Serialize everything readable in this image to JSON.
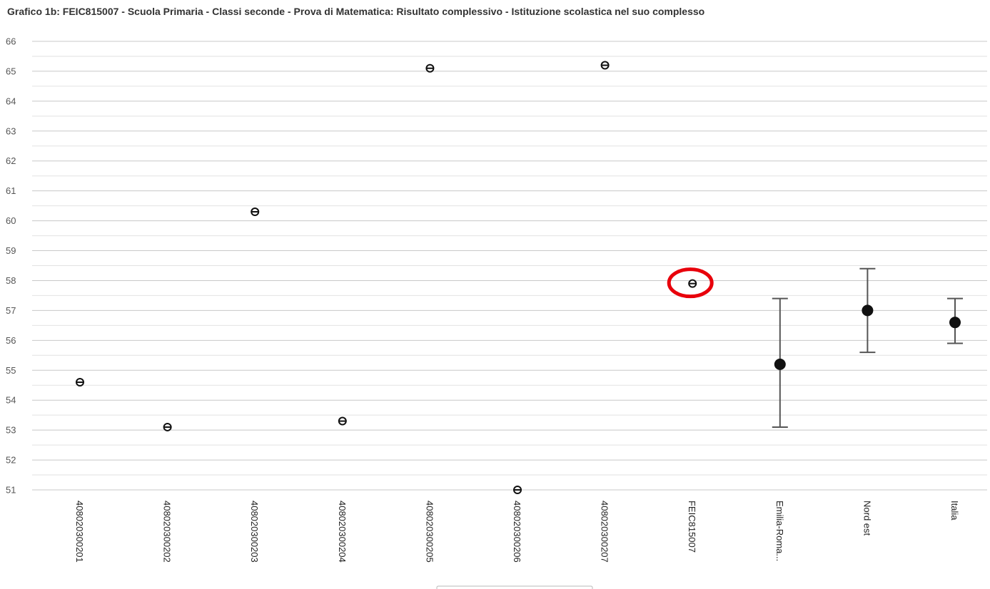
{
  "chart_data": {
    "type": "scatter",
    "title": "Grafico 1b: FEIC815007 - Scuola Primaria - Classi seconde - Prova di Matematica: Risultato complessivo - Istituzione scolastica nel suo complesso",
    "xlabel": "",
    "ylabel": "",
    "ylim": [
      51,
      66
    ],
    "yticks": [
      "51",
      "52",
      "53",
      "54",
      "55",
      "56",
      "57",
      "58",
      "59",
      "60",
      "61",
      "62",
      "63",
      "64",
      "65",
      "66"
    ],
    "grid": true,
    "categories": [
      "408020300201",
      "408020300202",
      "408020300203",
      "408020300204",
      "408020300205",
      "408020300206",
      "408020300207",
      "FEIC815007",
      "Emilia-Roma...",
      "Nord est",
      "Italia"
    ],
    "points": [
      {
        "category": "408020300201",
        "value": 54.6,
        "style": "circle-small"
      },
      {
        "category": "408020300202",
        "value": 53.1,
        "style": "circle-small"
      },
      {
        "category": "408020300203",
        "value": 60.3,
        "style": "circle-small"
      },
      {
        "category": "408020300204",
        "value": 53.3,
        "style": "circle-small"
      },
      {
        "category": "408020300205",
        "value": 65.1,
        "style": "circle-small"
      },
      {
        "category": "408020300206",
        "value": 51.0,
        "style": "circle-small"
      },
      {
        "category": "408020300207",
        "value": 65.2,
        "style": "circle-small"
      },
      {
        "category": "FEIC815007",
        "value": 57.9,
        "style": "circle-small",
        "highlighted": true
      },
      {
        "category": "Emilia-Roma...",
        "value": 55.2,
        "low": 53.1,
        "high": 57.4,
        "style": "circle-large"
      },
      {
        "category": "Nord est",
        "value": 57.0,
        "low": 55.6,
        "high": 58.4,
        "style": "circle-large"
      },
      {
        "category": "Italia",
        "value": 56.6,
        "low": 55.9,
        "high": 57.4,
        "style": "circle-large"
      }
    ],
    "colors": {
      "marker": "#111111",
      "highlight": "#e8000b",
      "errorbar": "#555555"
    }
  }
}
